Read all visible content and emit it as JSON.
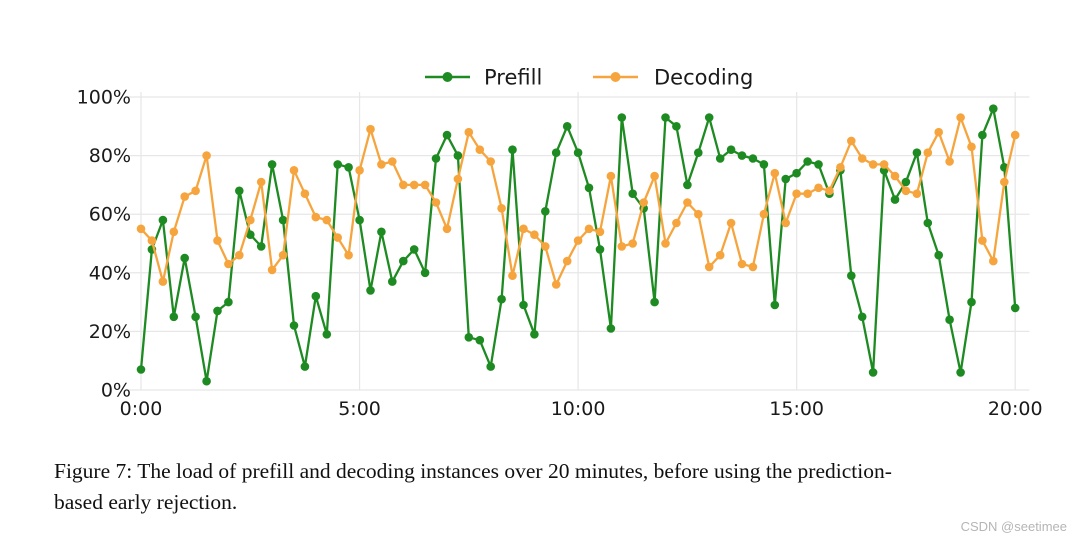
{
  "figure": {
    "caption_line1": "Figure 7: The load of prefill and decoding instances over 20 minutes, before using the prediction-",
    "caption_line2": "based early rejection."
  },
  "watermark": "CSDN @seetimee",
  "colors": {
    "background": "#FFFFFF",
    "grid": "#E7E7E7",
    "tick_label": "#1A1A1A",
    "legend_label": "#1A1A1A",
    "caption_text": "#101010",
    "watermark_text": "#B5B5B5",
    "prefill_green": "#1E8B22",
    "decoding_orange": "#F6A53E"
  },
  "chart_data": {
    "type": "line",
    "title": "",
    "xlabel": "",
    "ylabel": "",
    "grid": true,
    "legend_position": "top-center",
    "x_range_minutes": [
      0,
      20
    ],
    "ylim": [
      0,
      100
    ],
    "sample_interval_seconds": 15,
    "x_ticks": [
      {
        "label": "0:00",
        "minute": 0
      },
      {
        "label": "5:00",
        "minute": 5
      },
      {
        "label": "10:00",
        "minute": 10
      },
      {
        "label": "15:00",
        "minute": 15
      },
      {
        "label": "20:00",
        "minute": 20
      }
    ],
    "y_ticks": [
      {
        "label": "0%",
        "value": 0
      },
      {
        "label": "20%",
        "value": 20
      },
      {
        "label": "40%",
        "value": 40
      },
      {
        "label": "60%",
        "value": 60
      },
      {
        "label": "80%",
        "value": 80
      },
      {
        "label": "100%",
        "value": 100
      }
    ],
    "series": [
      {
        "name": "Prefill",
        "color": "#1E8B22",
        "marker": "circle",
        "values_percent": [
          7,
          48,
          58,
          25,
          45,
          25,
          3,
          27,
          30,
          68,
          53,
          49,
          77,
          58,
          22,
          8,
          32,
          19,
          77,
          76,
          58,
          34,
          54,
          37,
          44,
          48,
          40,
          79,
          87,
          80,
          18,
          17,
          8,
          31,
          82,
          29,
          19,
          61,
          81,
          90,
          81,
          69,
          48,
          21,
          93,
          67,
          62,
          30,
          93,
          90,
          70,
          81,
          93,
          79,
          82,
          80,
          79,
          77,
          29,
          72,
          74,
          78,
          77,
          67,
          75,
          39,
          25,
          6,
          75,
          65,
          71,
          81,
          57,
          46,
          24,
          6,
          30,
          87,
          96,
          76,
          28
        ]
      },
      {
        "name": "Decoding",
        "color": "#F6A53E",
        "marker": "circle",
        "values_percent": [
          55,
          51,
          37,
          54,
          66,
          68,
          80,
          51,
          43,
          46,
          58,
          71,
          41,
          46,
          75,
          67,
          59,
          58,
          52,
          46,
          75,
          89,
          77,
          78,
          70,
          70,
          70,
          64,
          55,
          72,
          88,
          82,
          78,
          62,
          39,
          55,
          53,
          49,
          36,
          44,
          51,
          55,
          54,
          73,
          49,
          50,
          64,
          73,
          50,
          57,
          64,
          60,
          42,
          46,
          57,
          43,
          42,
          60,
          74,
          57,
          67,
          67,
          69,
          68,
          76,
          85,
          79,
          77,
          77,
          73,
          68,
          67,
          81,
          88,
          78,
          93,
          83,
          51,
          44,
          71,
          87
        ]
      }
    ]
  }
}
